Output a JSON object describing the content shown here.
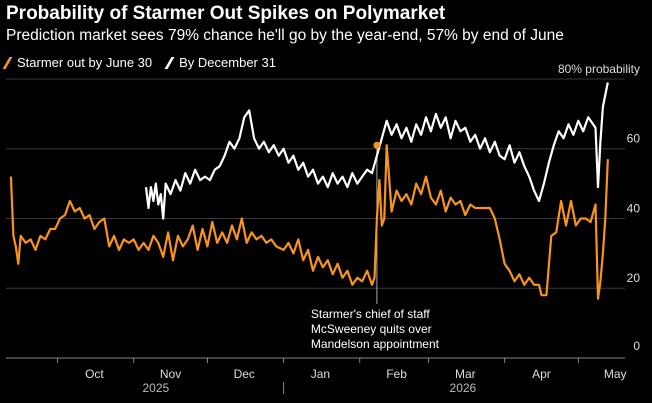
{
  "title": "Probability of Starmer Out Spikes on Polymarket",
  "subtitle": "Prediction market sees 79% chance he'll go by the year-end, 57% by end of June",
  "colors": {
    "orange": "#f7941d",
    "white": "#ffffff",
    "grid": "#3a3a3a",
    "background": "#000000"
  },
  "chart_data": {
    "type": "line",
    "y_ticks": [
      {
        "value": 20,
        "label": "20"
      },
      {
        "value": 40,
        "label": "40"
      },
      {
        "value": 60,
        "label": "60"
      },
      {
        "value": 80,
        "label": "80% probability"
      }
    ],
    "y_zero_label": "0",
    "ylim": [
      0,
      82
    ],
    "grid": true,
    "month_labels": [
      {
        "label": "Oct",
        "date": "2025-10-01"
      },
      {
        "label": "Nov",
        "date": "2025-11-01"
      },
      {
        "label": "Dec",
        "date": "2025-12-01"
      },
      {
        "label": "Jan",
        "date": "2026-01-01"
      },
      {
        "label": "Feb",
        "date": "2026-02-01"
      },
      {
        "label": "Mar",
        "date": "2026-03-01"
      },
      {
        "label": "Apr",
        "date": "2026-04-01"
      },
      {
        "label": "May",
        "date": "2026-05-01"
      }
    ],
    "year_labels": [
      {
        "label": "2025",
        "date": "2025-11-10"
      },
      {
        "label": "2026",
        "date": "2026-03-15"
      }
    ],
    "series": [
      {
        "name": "Starmer out by June 30",
        "color": "#f7941d",
        "points": [
          [
            "2025-09-12",
            52
          ],
          [
            "2025-09-13",
            35
          ],
          [
            "2025-09-14",
            32
          ],
          [
            "2025-09-15",
            27
          ],
          [
            "2025-09-16",
            35
          ],
          [
            "2025-09-18",
            33
          ],
          [
            "2025-09-20",
            34
          ],
          [
            "2025-09-22",
            31
          ],
          [
            "2025-09-24",
            35
          ],
          [
            "2025-09-26",
            34
          ],
          [
            "2025-09-28",
            37
          ],
          [
            "2025-09-30",
            37
          ],
          [
            "2025-10-02",
            40
          ],
          [
            "2025-10-04",
            41
          ],
          [
            "2025-10-06",
            45
          ],
          [
            "2025-10-08",
            42
          ],
          [
            "2025-10-10",
            43
          ],
          [
            "2025-10-12",
            40
          ],
          [
            "2025-10-14",
            41
          ],
          [
            "2025-10-16",
            37
          ],
          [
            "2025-10-18",
            39
          ],
          [
            "2025-10-20",
            40
          ],
          [
            "2025-10-22",
            32
          ],
          [
            "2025-10-24",
            35
          ],
          [
            "2025-10-26",
            31
          ],
          [
            "2025-10-28",
            34
          ],
          [
            "2025-10-30",
            33
          ],
          [
            "2025-11-01",
            34
          ],
          [
            "2025-11-03",
            31
          ],
          [
            "2025-11-05",
            33
          ],
          [
            "2025-11-07",
            31
          ],
          [
            "2025-11-09",
            35
          ],
          [
            "2025-11-11",
            33
          ],
          [
            "2025-11-13",
            29
          ],
          [
            "2025-11-15",
            36
          ],
          [
            "2025-11-17",
            28
          ],
          [
            "2025-11-19",
            35
          ],
          [
            "2025-11-21",
            32
          ],
          [
            "2025-11-23",
            34
          ],
          [
            "2025-11-25",
            38
          ],
          [
            "2025-11-27",
            31
          ],
          [
            "2025-11-29",
            37
          ],
          [
            "2025-12-01",
            32
          ],
          [
            "2025-12-03",
            39
          ],
          [
            "2025-12-05",
            33
          ],
          [
            "2025-12-07",
            36
          ],
          [
            "2025-12-09",
            33
          ],
          [
            "2025-12-11",
            38
          ],
          [
            "2025-12-13",
            34
          ],
          [
            "2025-12-15",
            40
          ],
          [
            "2025-12-17",
            33
          ],
          [
            "2025-12-19",
            36
          ],
          [
            "2025-12-21",
            34
          ],
          [
            "2025-12-23",
            35
          ],
          [
            "2025-12-25",
            33
          ],
          [
            "2025-12-27",
            34
          ],
          [
            "2025-12-29",
            32
          ],
          [
            "2026-01-01",
            31
          ],
          [
            "2026-01-03",
            33
          ],
          [
            "2026-01-05",
            30
          ],
          [
            "2026-01-07",
            34
          ],
          [
            "2026-01-09",
            28
          ],
          [
            "2026-01-11",
            31
          ],
          [
            "2026-01-13",
            25
          ],
          [
            "2026-01-15",
            29
          ],
          [
            "2026-01-17",
            26
          ],
          [
            "2026-01-19",
            28
          ],
          [
            "2026-01-21",
            24
          ],
          [
            "2026-01-23",
            27
          ],
          [
            "2026-01-25",
            23
          ],
          [
            "2026-01-27",
            25
          ],
          [
            "2026-01-29",
            21
          ],
          [
            "2026-01-31",
            23
          ],
          [
            "2026-02-02",
            22
          ],
          [
            "2026-02-04",
            25
          ],
          [
            "2026-02-06",
            21
          ],
          [
            "2026-02-07",
            23
          ],
          [
            "2026-02-08",
            40
          ],
          [
            "2026-02-09",
            51
          ],
          [
            "2026-02-10",
            38
          ],
          [
            "2026-02-11",
            40
          ],
          [
            "2026-02-12",
            61
          ],
          [
            "2026-02-14",
            42
          ],
          [
            "2026-02-16",
            48
          ],
          [
            "2026-02-18",
            45
          ],
          [
            "2026-02-20",
            47
          ],
          [
            "2026-02-22",
            44
          ],
          [
            "2026-02-24",
            50
          ],
          [
            "2026-02-26",
            47
          ],
          [
            "2026-02-28",
            52
          ],
          [
            "2026-03-02",
            46
          ],
          [
            "2026-03-04",
            44
          ],
          [
            "2026-03-06",
            48
          ],
          [
            "2026-03-08",
            42
          ],
          [
            "2026-03-10",
            46
          ],
          [
            "2026-03-12",
            44
          ],
          [
            "2026-03-14",
            45
          ],
          [
            "2026-03-16",
            41
          ],
          [
            "2026-03-18",
            44
          ],
          [
            "2026-03-20",
            43
          ],
          [
            "2026-03-22",
            43
          ],
          [
            "2026-03-26",
            43
          ],
          [
            "2026-03-28",
            40
          ],
          [
            "2026-03-30",
            34
          ],
          [
            "2026-04-01",
            27
          ],
          [
            "2026-04-03",
            25
          ],
          [
            "2026-04-05",
            22
          ],
          [
            "2026-04-07",
            24
          ],
          [
            "2026-04-09",
            21
          ],
          [
            "2026-04-11",
            23
          ],
          [
            "2026-04-13",
            21
          ],
          [
            "2026-04-15",
            21
          ],
          [
            "2026-04-16",
            18
          ],
          [
            "2026-04-18",
            18
          ],
          [
            "2026-04-20",
            35
          ],
          [
            "2026-04-22",
            36
          ],
          [
            "2026-04-24",
            45
          ],
          [
            "2026-04-26",
            38
          ],
          [
            "2026-04-28",
            45
          ],
          [
            "2026-04-30",
            38
          ],
          [
            "2026-05-02",
            40
          ],
          [
            "2026-05-04",
            40
          ],
          [
            "2026-05-06",
            39
          ],
          [
            "2026-05-08",
            44
          ],
          [
            "2026-05-09",
            17
          ],
          [
            "2026-05-10",
            22
          ],
          [
            "2026-05-11",
            30
          ],
          [
            "2026-05-12",
            40
          ],
          [
            "2026-05-13",
            57
          ]
        ]
      },
      {
        "name": "By December 31",
        "color": "#ffffff",
        "points": [
          [
            "2025-11-06",
            49
          ],
          [
            "2025-11-07",
            43
          ],
          [
            "2025-11-08",
            49
          ],
          [
            "2025-11-09",
            45
          ],
          [
            "2025-11-10",
            50
          ],
          [
            "2025-11-11",
            44
          ],
          [
            "2025-11-12",
            47
          ],
          [
            "2025-11-13",
            40
          ],
          [
            "2025-11-14",
            50
          ],
          [
            "2025-11-16",
            47
          ],
          [
            "2025-11-18",
            51
          ],
          [
            "2025-11-20",
            48
          ],
          [
            "2025-11-22",
            53
          ],
          [
            "2025-11-24",
            50
          ],
          [
            "2025-11-26",
            54
          ],
          [
            "2025-11-28",
            51
          ],
          [
            "2025-11-30",
            52
          ],
          [
            "2025-12-02",
            51
          ],
          [
            "2025-12-04",
            54
          ],
          [
            "2025-12-06",
            55
          ],
          [
            "2025-12-08",
            58
          ],
          [
            "2025-12-10",
            62
          ],
          [
            "2025-12-12",
            60
          ],
          [
            "2025-12-14",
            63
          ],
          [
            "2025-12-16",
            69
          ],
          [
            "2025-12-18",
            71
          ],
          [
            "2025-12-20",
            63
          ],
          [
            "2025-12-22",
            60
          ],
          [
            "2025-12-24",
            62
          ],
          [
            "2025-12-26",
            59
          ],
          [
            "2025-12-28",
            61
          ],
          [
            "2025-12-30",
            58
          ],
          [
            "2026-01-01",
            60
          ],
          [
            "2026-01-03",
            56
          ],
          [
            "2026-01-05",
            58
          ],
          [
            "2026-01-07",
            54
          ],
          [
            "2026-01-09",
            56
          ],
          [
            "2026-01-11",
            52
          ],
          [
            "2026-01-13",
            54
          ],
          [
            "2026-01-15",
            50
          ],
          [
            "2026-01-17",
            52
          ],
          [
            "2026-01-19",
            49
          ],
          [
            "2026-01-21",
            53
          ],
          [
            "2026-01-23",
            50
          ],
          [
            "2026-01-25",
            52
          ],
          [
            "2026-01-27",
            49
          ],
          [
            "2026-01-29",
            53
          ],
          [
            "2026-01-31",
            50
          ],
          [
            "2026-02-02",
            52
          ],
          [
            "2026-02-04",
            54
          ],
          [
            "2026-02-06",
            53
          ],
          [
            "2026-02-08",
            58
          ],
          [
            "2026-02-10",
            63
          ],
          [
            "2026-02-12",
            68
          ],
          [
            "2026-02-14",
            64
          ],
          [
            "2026-02-16",
            67
          ],
          [
            "2026-02-18",
            63
          ],
          [
            "2026-02-20",
            66
          ],
          [
            "2026-02-22",
            62
          ],
          [
            "2026-02-24",
            67
          ],
          [
            "2026-02-26",
            64
          ],
          [
            "2026-02-28",
            69
          ],
          [
            "2026-03-02",
            65
          ],
          [
            "2026-03-04",
            70
          ],
          [
            "2026-03-06",
            66
          ],
          [
            "2026-03-08",
            69
          ],
          [
            "2026-03-10",
            63
          ],
          [
            "2026-03-12",
            68
          ],
          [
            "2026-03-14",
            65
          ],
          [
            "2026-03-16",
            66
          ],
          [
            "2026-03-18",
            62
          ],
          [
            "2026-03-20",
            64
          ],
          [
            "2026-03-22",
            60
          ],
          [
            "2026-03-24",
            63
          ],
          [
            "2026-03-26",
            59
          ],
          [
            "2026-03-28",
            62
          ],
          [
            "2026-03-30",
            58
          ],
          [
            "2026-04-01",
            57
          ],
          [
            "2026-04-03",
            61
          ],
          [
            "2026-04-05",
            56
          ],
          [
            "2026-04-07",
            59
          ],
          [
            "2026-04-09",
            55
          ],
          [
            "2026-04-11",
            52
          ],
          [
            "2026-04-13",
            48
          ],
          [
            "2026-04-15",
            45
          ],
          [
            "2026-04-17",
            50
          ],
          [
            "2026-04-19",
            56
          ],
          [
            "2026-04-21",
            61
          ],
          [
            "2026-04-23",
            65
          ],
          [
            "2026-04-25",
            63
          ],
          [
            "2026-04-27",
            67
          ],
          [
            "2026-04-29",
            64
          ],
          [
            "2026-05-01",
            68
          ],
          [
            "2026-05-03",
            65
          ],
          [
            "2026-05-05",
            69
          ],
          [
            "2026-05-07",
            67
          ],
          [
            "2026-05-08",
            66
          ],
          [
            "2026-05-09",
            49
          ],
          [
            "2026-05-10",
            62
          ],
          [
            "2026-05-11",
            72
          ],
          [
            "2026-05-13",
            79
          ]
        ]
      }
    ],
    "annotation": {
      "lines": [
        "Starmer's chief of staff",
        "McSweeney quits over",
        "Mandelson appointment"
      ],
      "date": "2026-02-08",
      "value": 61
    }
  }
}
